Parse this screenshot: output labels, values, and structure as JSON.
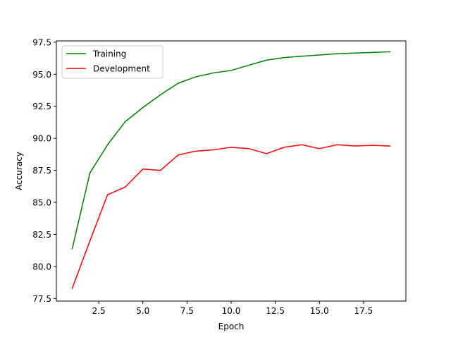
{
  "chart_data": {
    "type": "line",
    "title": "",
    "xlabel": "Epoch",
    "ylabel": "Accuracy",
    "xlim": [
      0.1,
      19.9
    ],
    "ylim": [
      77.3,
      97.6
    ],
    "xticks": [
      2.5,
      5.0,
      7.5,
      10.0,
      12.5,
      15.0,
      17.5
    ],
    "yticks": [
      77.5,
      80.0,
      82.5,
      85.0,
      87.5,
      90.0,
      92.5,
      95.0,
      97.5
    ],
    "grid": false,
    "legend_position": "upper-left",
    "x": [
      1,
      2,
      3,
      4,
      5,
      6,
      7,
      8,
      9,
      10,
      11,
      12,
      13,
      14,
      15,
      16,
      17,
      18,
      19
    ],
    "series": [
      {
        "name": "Training",
        "color": "#008000",
        "values": [
          81.4,
          87.3,
          89.5,
          91.3,
          92.4,
          93.4,
          94.3,
          94.8,
          95.1,
          95.3,
          95.7,
          96.1,
          96.3,
          96.4,
          96.5,
          96.6,
          96.65,
          96.7,
          96.75
        ]
      },
      {
        "name": "Development",
        "color": "#ff0000",
        "values": [
          78.3,
          82.0,
          85.6,
          86.2,
          87.6,
          87.5,
          88.7,
          89.0,
          89.1,
          89.3,
          89.2,
          88.8,
          89.3,
          89.5,
          89.2,
          89.5,
          89.4,
          89.45,
          89.4
        ]
      }
    ]
  }
}
